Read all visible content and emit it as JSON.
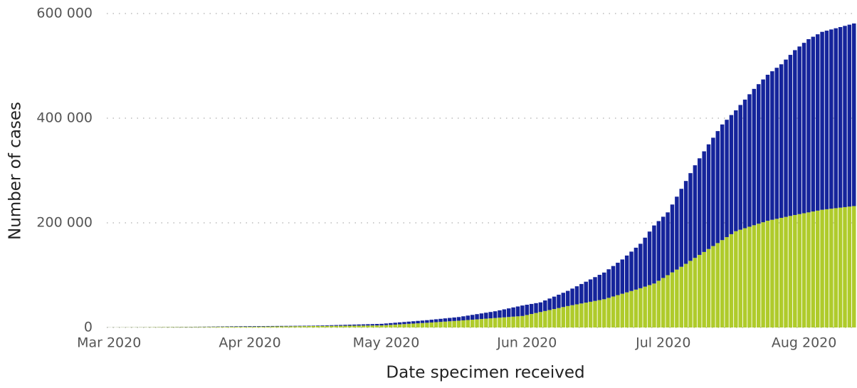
{
  "chart_data": {
    "type": "bar",
    "stacked": true,
    "x_label": "Date specimen received",
    "y_label": "Number of cases",
    "categories": [
      "Mar 2020",
      null,
      null,
      null,
      null,
      null,
      null,
      null,
      null,
      null,
      null,
      null,
      null,
      null,
      null,
      null,
      null,
      null,
      null,
      null,
      null,
      null,
      null,
      null,
      null,
      null,
      null,
      null,
      null,
      null,
      null,
      "Apr 2020",
      null,
      null,
      null,
      null,
      null,
      null,
      null,
      null,
      null,
      null,
      null,
      null,
      null,
      null,
      null,
      null,
      null,
      null,
      null,
      null,
      null,
      null,
      null,
      null,
      null,
      null,
      null,
      null,
      null,
      "May 2020",
      null,
      null,
      null,
      null,
      null,
      null,
      null,
      null,
      null,
      null,
      null,
      null,
      null,
      null,
      null,
      null,
      null,
      null,
      null,
      null,
      null,
      null,
      null,
      null,
      null,
      null,
      null,
      null,
      null,
      null,
      "Jun 2020",
      null,
      null,
      null,
      null,
      null,
      null,
      null,
      null,
      null,
      null,
      null,
      null,
      null,
      null,
      null,
      null,
      null,
      null,
      null,
      null,
      null,
      null,
      null,
      null,
      null,
      null,
      null,
      null,
      null,
      "Jul 2020",
      null,
      null,
      null,
      null,
      null,
      null,
      null,
      null,
      null,
      null,
      null,
      null,
      null,
      null,
      null,
      null,
      null,
      null,
      null,
      null,
      null,
      null,
      null,
      null,
      null,
      null,
      null,
      null,
      null,
      null,
      "Aug 2020",
      null,
      null,
      null,
      null,
      null,
      null,
      null,
      null,
      null,
      null,
      null
    ],
    "series": [
      {
        "color": "#afcb2b",
        "values": [
          200,
          240,
          280,
          330,
          370,
          410,
          450,
          490,
          540,
          580,
          620,
          660,
          700,
          740,
          790,
          830,
          870,
          910,
          950,
          1000,
          1040,
          1080,
          1120,
          1160,
          1210,
          1250,
          1290,
          1330,
          1370,
          1420,
          1460,
          1500,
          1590,
          1670,
          1760,
          1840,
          1930,
          2020,
          2100,
          2190,
          2280,
          2360,
          2450,
          2530,
          2620,
          2710,
          2790,
          2880,
          2970,
          3050,
          3140,
          3220,
          3310,
          3400,
          3480,
          3570,
          3660,
          3740,
          3830,
          3910,
          4000,
          4500,
          5000,
          5500,
          6000,
          6500,
          7000,
          7500,
          8000,
          8500,
          9000,
          9570,
          10140,
          10710,
          11290,
          11860,
          12430,
          13000,
          13640,
          14290,
          14930,
          15570,
          16210,
          16860,
          17500,
          18140,
          18790,
          19430,
          20070,
          20710,
          21360,
          22000,
          23900,
          25800,
          27700,
          29600,
          31500,
          33400,
          35300,
          37200,
          39100,
          41000,
          42630,
          44250,
          45880,
          47500,
          49130,
          50750,
          52380,
          54000,
          56630,
          59250,
          61880,
          64500,
          67130,
          69750,
          72380,
          75000,
          78000,
          81000,
          84000,
          89330,
          94670,
          100000,
          105330,
          110670,
          116000,
          121670,
          127330,
          133000,
          138670,
          144330,
          150000,
          155670,
          161330,
          167000,
          172670,
          178330,
          184000,
          186860,
          189710,
          192570,
          195430,
          198290,
          201140,
          204000,
          205830,
          207670,
          209500,
          211330,
          213170,
          215000,
          216670,
          218330,
          220000,
          221670,
          223330,
          225000,
          226000,
          227000,
          228000,
          229000,
          230000,
          231000,
          232000
        ]
      },
      {
        "color": "#15249b",
        "values": [
          100,
          110,
          120,
          120,
          130,
          140,
          150,
          160,
          160,
          170,
          180,
          210,
          240,
          270,
          290,
          320,
          350,
          380,
          410,
          430,
          460,
          510,
          560,
          610,
          650,
          700,
          760,
          810,
          860,
          900,
          950,
          1000,
          980,
          970,
          950,
          950,
          930,
          910,
          900,
          880,
          860,
          850,
          840,
          830,
          810,
          790,
          940,
          1090,
          1230,
          1380,
          1530,
          1680,
          1820,
          1970,
          2120,
          2260,
          2410,
          2560,
          2700,
          2860,
          3000,
          3200,
          3400,
          3600,
          3800,
          4000,
          4200,
          4400,
          4600,
          4800,
          5000,
          5290,
          5570,
          5860,
          6140,
          6430,
          6710,
          7000,
          7740,
          8460,
          9200,
          9930,
          10670,
          11390,
          12130,
          12860,
          14040,
          15240,
          16430,
          17620,
          18810,
          20000,
          19600,
          19200,
          18800,
          18400,
          20170,
          21930,
          23700,
          25470,
          27230,
          29000,
          31750,
          34500,
          37250,
          40000,
          42750,
          45500,
          48250,
          51000,
          54620,
          58250,
          61870,
          65500,
          70370,
          75250,
          80120,
          85000,
          93670,
          102330,
          111000,
          114000,
          117000,
          120000,
          129670,
          139330,
          149000,
          158330,
          167670,
          177000,
          184660,
          192340,
          200000,
          207000,
          214000,
          221000,
          224330,
          227670,
          231000,
          238390,
          245790,
          253180,
          260570,
          266710,
          272860,
          279000,
          283840,
          288660,
          293500,
          300670,
          307830,
          315000,
          320330,
          325670,
          331000,
          334000,
          337000,
          340000,
          341290,
          342570,
          343860,
          345140,
          346430,
          347710,
          349000
        ]
      }
    ],
    "ylim": [
      0,
      600000
    ],
    "yticks": [
      0,
      {
        "value": 200000,
        "label": "200 000"
      },
      {
        "value": 400000,
        "label": "400 000"
      },
      {
        "value": 600000,
        "label": "600 000"
      }
    ],
    "grid": true
  }
}
